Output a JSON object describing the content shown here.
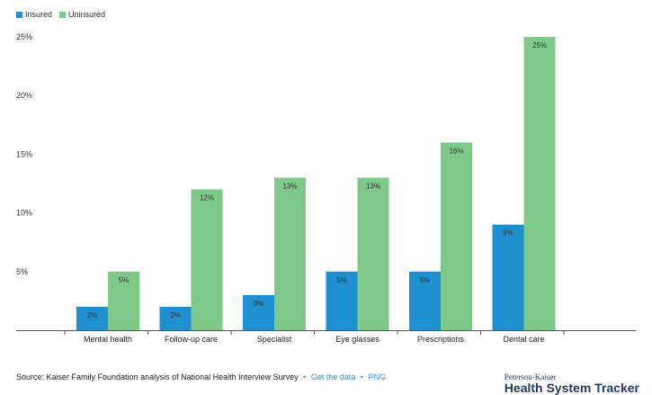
{
  "legend": [
    {
      "label": "Insured",
      "color": "#1e90d0"
    },
    {
      "label": "Uninsured",
      "color": "#7ec88a"
    }
  ],
  "chart_data": {
    "type": "bar",
    "categories": [
      "Mental health",
      "Follow-up care",
      "Specialist",
      "Eye glasses",
      "Prescriptions",
      "Dental care"
    ],
    "series": [
      {
        "name": "Insured",
        "color": "#1e90d0",
        "values": [
          2,
          2,
          3,
          5,
          5,
          9
        ],
        "labels": [
          "2%",
          "2%",
          "3%",
          "5%",
          "5%",
          "9%"
        ]
      },
      {
        "name": "Uninsured",
        "color": "#7ec88a",
        "values": [
          5,
          12,
          13,
          13,
          16,
          25
        ],
        "labels": [
          "5%",
          "12%",
          "13%",
          "13%",
          "16%",
          "25%"
        ]
      }
    ],
    "yticks": [
      5,
      10,
      15,
      20,
      25
    ],
    "ytick_labels": [
      "5%",
      "10%",
      "15%",
      "20%",
      "25%"
    ],
    "ylim": [
      0,
      25
    ],
    "grid": false,
    "legend_position": "top-left"
  },
  "footer": {
    "source": "Source: Kaiser Family Foundation analysis of National Health Interview Survey",
    "sep": "•",
    "get_data": "Get the data",
    "png": "PNG"
  },
  "brand": {
    "sub": "Peterson-Kaiser",
    "main": "Health System Tracker"
  }
}
